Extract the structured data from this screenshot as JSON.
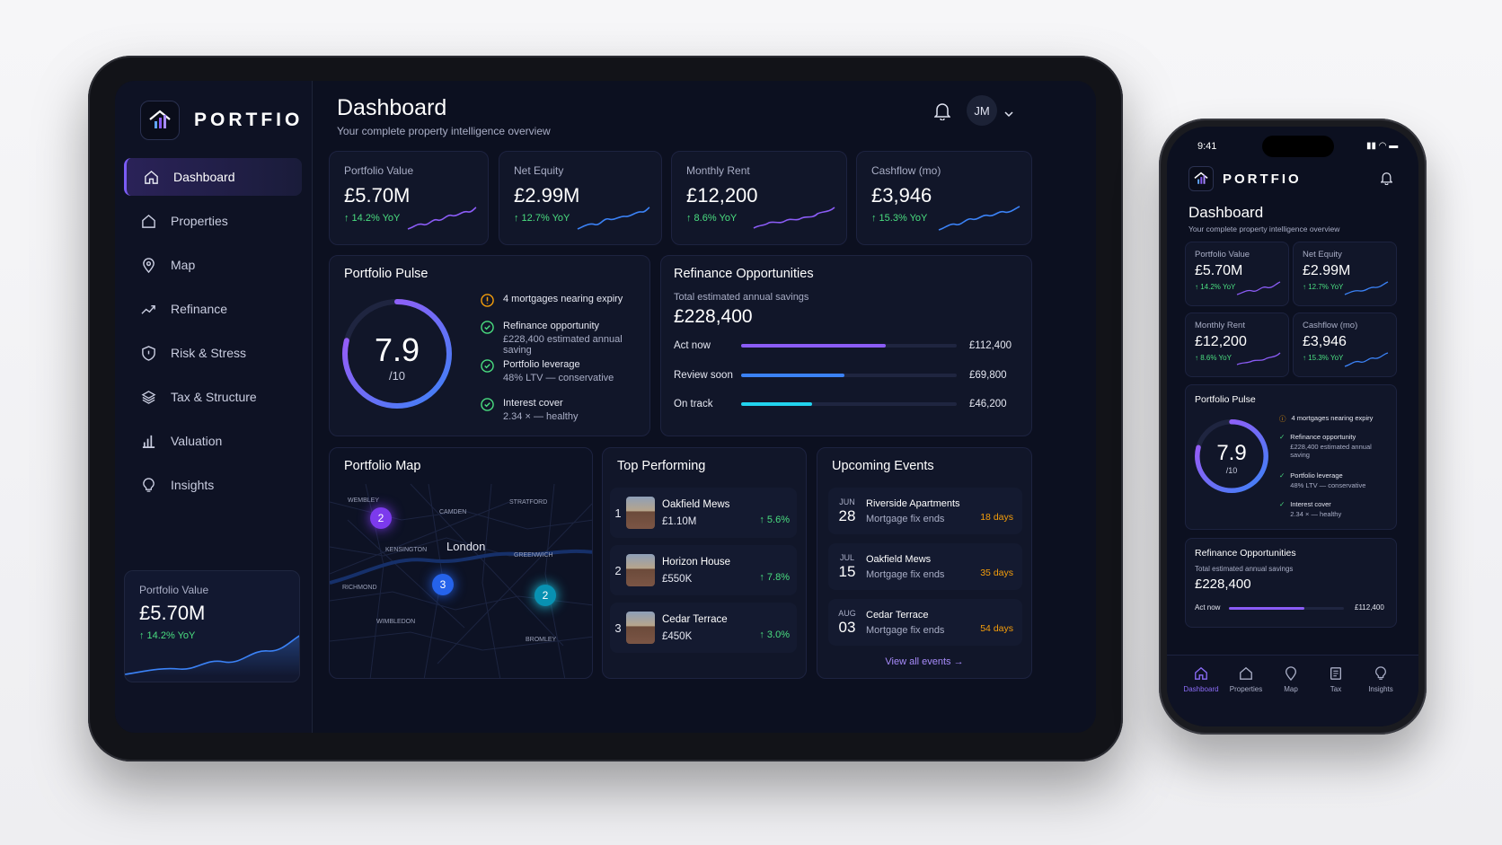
{
  "brand": {
    "name": "PORTFIO"
  },
  "nav": [
    {
      "label": "Dashboard",
      "icon": "home-icon",
      "active": true
    },
    {
      "label": "Properties",
      "icon": "home-icon"
    },
    {
      "label": "Map",
      "icon": "map-pin-icon"
    },
    {
      "label": "Refinance",
      "icon": "trend-up-icon"
    },
    {
      "label": "Risk & Stress",
      "icon": "shield-icon"
    },
    {
      "label": "Tax & Structure",
      "icon": "layers-icon"
    },
    {
      "label": "Valuation",
      "icon": "bar-chart-icon"
    },
    {
      "label": "Insights",
      "icon": "lightbulb-icon"
    }
  ],
  "sidebar_card": {
    "label": "Portfolio Value",
    "value": "£5.70M",
    "yoy": "↑ 14.2% YoY"
  },
  "header": {
    "title": "Dashboard",
    "subtitle": "Your complete property intelligence overview",
    "avatar": "JM"
  },
  "kpis": [
    {
      "label": "Portfolio Value",
      "value": "£5.70M",
      "yoy": "↑ 14.2% YoY"
    },
    {
      "label": "Net Equity",
      "value": "£2.99M",
      "yoy": "↑ 12.7% YoY"
    },
    {
      "label": "Monthly Rent",
      "value": "£12,200",
      "yoy": "↑ 8.6% YoY"
    },
    {
      "label": "Cashflow (mo)",
      "value": "£3,946",
      "yoy": "↑ 15.3% YoY"
    }
  ],
  "pulse": {
    "title": "Portfolio Pulse",
    "score": "7.9",
    "scale": "/10",
    "score_fraction": 0.79,
    "items": [
      {
        "icon": "warning-icon",
        "title": "4 mortgages nearing expiry",
        "sub": ""
      },
      {
        "icon": "check-circle-icon",
        "title": "Refinance opportunity",
        "sub": "£228,400 estimated annual saving"
      },
      {
        "icon": "check-circle-icon",
        "title": "Portfolio leverage",
        "sub": "48% LTV — conservative"
      },
      {
        "icon": "check-circle-icon",
        "title": "Interest cover",
        "sub": "2.34 × — healthy"
      }
    ]
  },
  "refinance": {
    "title": "Refinance Opportunities",
    "savings_label": "Total estimated annual savings",
    "savings_value": "£228,400",
    "rows": [
      {
        "label": "Act now",
        "value": "£112,400",
        "fraction": 0.67,
        "color": "#8b5cf6"
      },
      {
        "label": "Review soon",
        "value": "£69,800",
        "fraction": 0.48,
        "color": "#3b82f6"
      },
      {
        "label": "On track",
        "value": "£46,200",
        "fraction": 0.33,
        "color": "#22d3ee"
      }
    ]
  },
  "map": {
    "title": "Portfolio Map",
    "city": "London",
    "areas": [
      "WEMBLEY",
      "CAMDEN",
      "STRATFORD",
      "KENSINGTON",
      "GREENWICH",
      "RICHMOND",
      "WIMBLEDON",
      "BROMLEY"
    ],
    "pins": [
      "2",
      "3",
      "2"
    ]
  },
  "top_performing": {
    "title": "Top Performing",
    "rows": [
      {
        "rank": "1",
        "name": "Oakfield Mews",
        "price": "£1.10M",
        "pct": "↑ 5.6%"
      },
      {
        "rank": "2",
        "name": "Horizon House",
        "price": "£550K",
        "pct": "↑ 7.8%"
      },
      {
        "rank": "3",
        "name": "Cedar Terrace",
        "price": "£450K",
        "pct": "↑ 3.0%"
      }
    ]
  },
  "events": {
    "title": "Upcoming Events",
    "rows": [
      {
        "month": "JUN",
        "day": "28",
        "name": "Riverside Apartments",
        "sub": "Mortgage fix ends",
        "days": "18 days"
      },
      {
        "month": "JUL",
        "day": "15",
        "name": "Oakfield Mews",
        "sub": "Mortgage fix ends",
        "days": "35 days"
      },
      {
        "month": "AUG",
        "day": "03",
        "name": "Cedar Terrace",
        "sub": "Mortgage fix ends",
        "days": "54 days"
      }
    ],
    "view_all": "View all events"
  },
  "phone": {
    "time": "9:41",
    "brand": "PORTFIO",
    "title": "Dashboard",
    "subtitle": "Your complete property intelligence overview",
    "kpis": [
      {
        "label": "Portfolio Value",
        "value": "£5.70M",
        "yoy": "↑ 14.2% YoY"
      },
      {
        "label": "Net Equity",
        "value": "£2.99M",
        "yoy": "↑ 12.7% YoY"
      },
      {
        "label": "Monthly Rent",
        "value": "£12,200",
        "yoy": "↑ 8.6% YoY"
      },
      {
        "label": "Cashflow (mo)",
        "value": "£3,946",
        "yoy": "↑ 15.3% YoY"
      }
    ],
    "pulse": {
      "title": "Portfolio Pulse",
      "score": "7.9",
      "scale": "/10",
      "items": [
        {
          "title": "4 mortgages nearing expiry",
          "sub": ""
        },
        {
          "title": "Refinance opportunity",
          "sub": "£228,400 estimated annual saving"
        },
        {
          "title": "Portfolio leverage",
          "sub": "48% LTV — conservative"
        },
        {
          "title": "Interest cover",
          "sub": "2.34 × — healthy"
        }
      ]
    },
    "refinance": {
      "title": "Refinance Opportunities",
      "savings_label": "Total estimated annual savings",
      "savings_value": "£228,400",
      "row_label": "Act now",
      "row_value": "£112,400"
    },
    "tabs": [
      "Dashboard",
      "Properties",
      "Map",
      "Tax",
      "Insights"
    ]
  },
  "colors": {
    "accent": "#7b5cf5",
    "positive": "#4ade80",
    "warning": "#f59e0b",
    "bg": "#0c1020"
  }
}
